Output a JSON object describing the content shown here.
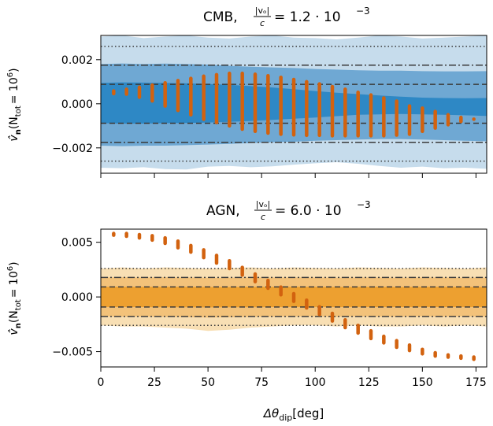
{
  "chart_data": [
    {
      "type": "line",
      "title": "CMB, |v_o|/c = 1.2 · 10^-3",
      "title_main": "CMB,",
      "title_fraction_num": "|vₒ|",
      "title_fraction_den": "c",
      "title_value": "= 1.2 · 10",
      "title_exponent": "−3",
      "ylabel": "v̂ₙ(N_tot = 10^6)",
      "ylabel_main": "v̂",
      "ylabel_sub": "n",
      "ylabel_rest": "(N",
      "ylabel_sub2": "tot",
      "ylabel_eq": "= 10",
      "ylabel_exp": "6",
      "ylabel_close": ")",
      "xlim": [
        0,
        180
      ],
      "ylim": [
        -0.00315,
        0.0031
      ],
      "yticks": [
        -0.002,
        0.0,
        0.002
      ],
      "ytick_labels": [
        "−0.002",
        "0.000",
        "0.002"
      ],
      "xticks": [
        0,
        25,
        50,
        75,
        100,
        125,
        150,
        175
      ],
      "show_xtick_labels": false,
      "bands": {
        "outer": {
          "color": "#c6dcec",
          "upper": [
            0.00305,
            0.0031,
            0.00298,
            0.00305,
            0.0031,
            0.003,
            0.00296,
            0.00305,
            0.0031,
            0.003,
            0.00298,
            0.00292,
            0.003,
            0.0031,
            0.00305,
            0.00296,
            0.003,
            0.00305,
            0.0031
          ],
          "lower": [
            -0.0029,
            -0.00292,
            -0.00288,
            -0.00296,
            -0.00298,
            -0.00285,
            -0.00282,
            -0.00288,
            -0.00284,
            -0.00276,
            -0.0027,
            -0.00265,
            -0.00272,
            -0.00282,
            -0.0029,
            -0.00285,
            -0.00292,
            -0.0029,
            -0.00295
          ]
        },
        "middle": {
          "color": "#6fa8d3",
          "upper": [
            0.0018,
            0.00183,
            0.0018,
            0.00182,
            0.0018,
            0.00178,
            0.00172,
            0.00168,
            0.00165,
            0.00162,
            0.00158,
            0.00155,
            0.00152,
            0.0015,
            0.0015,
            0.00148,
            0.00147,
            0.00147,
            0.00148
          ],
          "lower": [
            -0.0019,
            -0.00192,
            -0.0019,
            -0.0019,
            -0.00188,
            -0.00185,
            -0.00182,
            -0.00178,
            -0.00175,
            -0.00172,
            -0.00168,
            -0.00165,
            -0.00162,
            -0.0016,
            -0.0016,
            -0.00162,
            -0.00165,
            -0.00168,
            -0.0017
          ]
        },
        "inner": {
          "color": "#2e88c5",
          "upper": [
            0.00095,
            0.00097,
            0.00096,
            0.00095,
            0.00093,
            0.0009,
            0.00086,
            0.0008,
            0.00074,
            0.00066,
            0.00058,
            0.0005,
            0.00044,
            0.00038,
            0.00032,
            0.00028,
            0.00026,
            0.00025,
            0.00026
          ],
          "lower": [
            -0.00088,
            -0.0009,
            -0.0009,
            -0.00088,
            -0.00087,
            -0.00085,
            -0.00082,
            -0.00078,
            -0.00073,
            -0.00068,
            -0.00062,
            -0.00056,
            -0.0005,
            -0.00048,
            -0.00046,
            -0.00048,
            -0.0005,
            -0.00052,
            -0.00055
          ]
        },
        "band_x": [
          0,
          10,
          20,
          30,
          40,
          50,
          60,
          70,
          80,
          90,
          100,
          110,
          120,
          130,
          140,
          150,
          160,
          170,
          180
        ]
      },
      "hlines": [
        {
          "y": 0.0026,
          "style": "dotted"
        },
        {
          "y": -0.0026,
          "style": "dotted"
        },
        {
          "y": 0.00175,
          "style": "dashdot"
        },
        {
          "y": -0.00175,
          "style": "dashdot"
        },
        {
          "y": 0.00088,
          "style": "dashed"
        },
        {
          "y": -0.00088,
          "style": "dashed"
        }
      ],
      "points": {
        "color": "#d2620f",
        "x": [
          6,
          12,
          18,
          24,
          30,
          36,
          42,
          48,
          54,
          60,
          66,
          72,
          78,
          84,
          90,
          96,
          102,
          108,
          114,
          120,
          126,
          132,
          138,
          144,
          150,
          156,
          162,
          168,
          174
        ],
        "y_low": [
          0.00046,
          0.00044,
          0.0003,
          0.00013,
          -0.0001,
          -0.0003,
          -0.0005,
          -0.0007,
          -0.00085,
          -0.001,
          -0.00115,
          -0.00125,
          -0.00133,
          -0.00138,
          -0.00141,
          -0.00143,
          -0.00143,
          -0.00145,
          -0.00145,
          -0.00145,
          -0.00145,
          -0.00145,
          -0.00142,
          -0.00138,
          -0.00125,
          -0.0011,
          -0.00095,
          -0.0008,
          -0.0007
        ],
        "y_high": [
          0.00058,
          0.00066,
          0.00075,
          0.00085,
          0.00095,
          0.00105,
          0.00115,
          0.00125,
          0.00132,
          0.00138,
          0.00138,
          0.00134,
          0.00127,
          0.0012,
          0.0011,
          0.001,
          0.0009,
          0.00078,
          0.00066,
          0.00052,
          0.0004,
          0.00026,
          0.00012,
          -0.0001,
          -0.0002,
          -0.00035,
          -0.0005,
          -0.00062,
          -0.0007
        ]
      }
    },
    {
      "type": "line",
      "title": "AGN, |v_o|/c = 6.0 · 10^-3",
      "title_main": "AGN,",
      "title_fraction_num": "|vₒ|",
      "title_fraction_den": "c",
      "title_value": "= 6.0 · 10",
      "title_exponent": "−3",
      "ylabel": "v̂ₙ(N_tot = 10^6)",
      "ylabel_main": "v̂",
      "ylabel_sub": "n",
      "ylabel_rest": "(N",
      "ylabel_sub2": "tot",
      "ylabel_eq": "= 10",
      "ylabel_exp": "6",
      "ylabel_close": ")",
      "xlabel": "Δθ_dip[deg]",
      "xlabel_main": "Δθ",
      "xlabel_sub": "dip",
      "xlabel_rest": "[deg]",
      "xlim": [
        0,
        180
      ],
      "ylim": [
        -0.0064,
        0.0062
      ],
      "yticks": [
        -0.005,
        0.0,
        0.005
      ],
      "ytick_labels": [
        "−0.005",
        "0.000",
        "0.005"
      ],
      "xticks": [
        0,
        25,
        50,
        75,
        100,
        125,
        150,
        175
      ],
      "xtick_labels": [
        "0",
        "25",
        "50",
        "75",
        "100",
        "125",
        "150",
        "175"
      ],
      "show_xtick_labels": true,
      "bands": {
        "outer": {
          "color": "#f8dfb4",
          "upper": [
            0.0026,
            0.0027,
            0.0026,
            0.0027,
            0.00265,
            0.0026,
            0.00265,
            0.0027,
            0.0026,
            0.0027,
            0.00265,
            0.0026,
            0.0027,
            0.00265,
            0.0026,
            0.0027,
            0.00265,
            0.0026,
            0.0027
          ],
          "lower": [
            -0.0026,
            -0.0027,
            -0.0027,
            -0.0028,
            -0.0029,
            -0.0031,
            -0.003,
            -0.0028,
            -0.0027,
            -0.0026,
            -0.0026,
            -0.0027,
            -0.0026,
            -0.0027,
            -0.0027,
            -0.0026,
            -0.0027,
            -0.0026,
            -0.0027
          ]
        },
        "middle": {
          "color": "#f3c27a",
          "upper": [
            0.00178,
            0.0018,
            0.00178,
            0.0018,
            0.00178,
            0.00176,
            0.00176,
            0.00178,
            0.00178,
            0.00178,
            0.00178,
            0.00176,
            0.00178,
            0.00178,
            0.00176,
            0.00178,
            0.00178,
            0.00176,
            0.00178
          ],
          "lower": [
            -0.00178,
            -0.0018,
            -0.0018,
            -0.00182,
            -0.00185,
            -0.00188,
            -0.00186,
            -0.00182,
            -0.0018,
            -0.00178,
            -0.00178,
            -0.0018,
            -0.00178,
            -0.0018,
            -0.0018,
            -0.00178,
            -0.0018,
            -0.00178,
            -0.0018
          ]
        },
        "inner": {
          "color": "#eda030",
          "upper": [
            0.00092,
            0.00093,
            0.00092,
            0.00093,
            0.00092,
            0.00091,
            0.00091,
            0.00092,
            0.00092,
            0.00092,
            0.00092,
            0.00091,
            0.00092,
            0.00092,
            0.00091,
            0.00092,
            0.00092,
            0.00091,
            0.00092
          ],
          "lower": [
            -0.00092,
            -0.00093,
            -0.00093,
            -0.00094,
            -0.00095,
            -0.00096,
            -0.00095,
            -0.00094,
            -0.00093,
            -0.00092,
            -0.00092,
            -0.00093,
            -0.00092,
            -0.00093,
            -0.00093,
            -0.00092,
            -0.00093,
            -0.00092,
            -0.00093
          ]
        },
        "band_x": [
          0,
          10,
          20,
          30,
          40,
          50,
          60,
          70,
          80,
          90,
          100,
          110,
          120,
          130,
          140,
          150,
          160,
          170,
          180
        ]
      },
      "hlines": [
        {
          "y": 0.0026,
          "style": "dotted"
        },
        {
          "y": -0.0026,
          "style": "dotted"
        },
        {
          "y": 0.00178,
          "style": "dashdot"
        },
        {
          "y": -0.00178,
          "style": "dashdot"
        },
        {
          "y": 0.00092,
          "style": "dashed"
        },
        {
          "y": -0.00092,
          "style": "dashed"
        }
      ],
      "points": {
        "color": "#d2620f",
        "x": [
          6,
          12,
          18,
          24,
          30,
          36,
          42,
          48,
          54,
          60,
          66,
          72,
          78,
          84,
          90,
          96,
          102,
          108,
          114,
          120,
          126,
          132,
          138,
          144,
          150,
          156,
          162,
          168,
          174
        ],
        "y_low": [
          0.00565,
          0.00555,
          0.0054,
          0.0052,
          0.0049,
          0.0045,
          0.0041,
          0.0036,
          0.0031,
          0.0026,
          0.002,
          0.0014,
          0.0008,
          0.0002,
          -0.0004,
          -0.001,
          -0.0016,
          -0.0022,
          -0.0028,
          -0.0033,
          -0.0038,
          -0.0042,
          -0.0046,
          -0.0049,
          -0.0052,
          -0.0054,
          -0.0055,
          -0.0056,
          -0.0057
        ],
        "y_high": [
          0.0058,
          0.0058,
          0.0057,
          0.0056,
          0.0054,
          0.0051,
          0.0047,
          0.0043,
          0.0038,
          0.0033,
          0.0027,
          0.0021,
          0.0015,
          0.0009,
          0.0003,
          -0.0003,
          -0.0009,
          -0.0015,
          -0.0021,
          -0.0026,
          -0.0031,
          -0.0036,
          -0.004,
          -0.0044,
          -0.0048,
          -0.0051,
          -0.0053,
          -0.0054,
          -0.0055
        ]
      }
    }
  ]
}
